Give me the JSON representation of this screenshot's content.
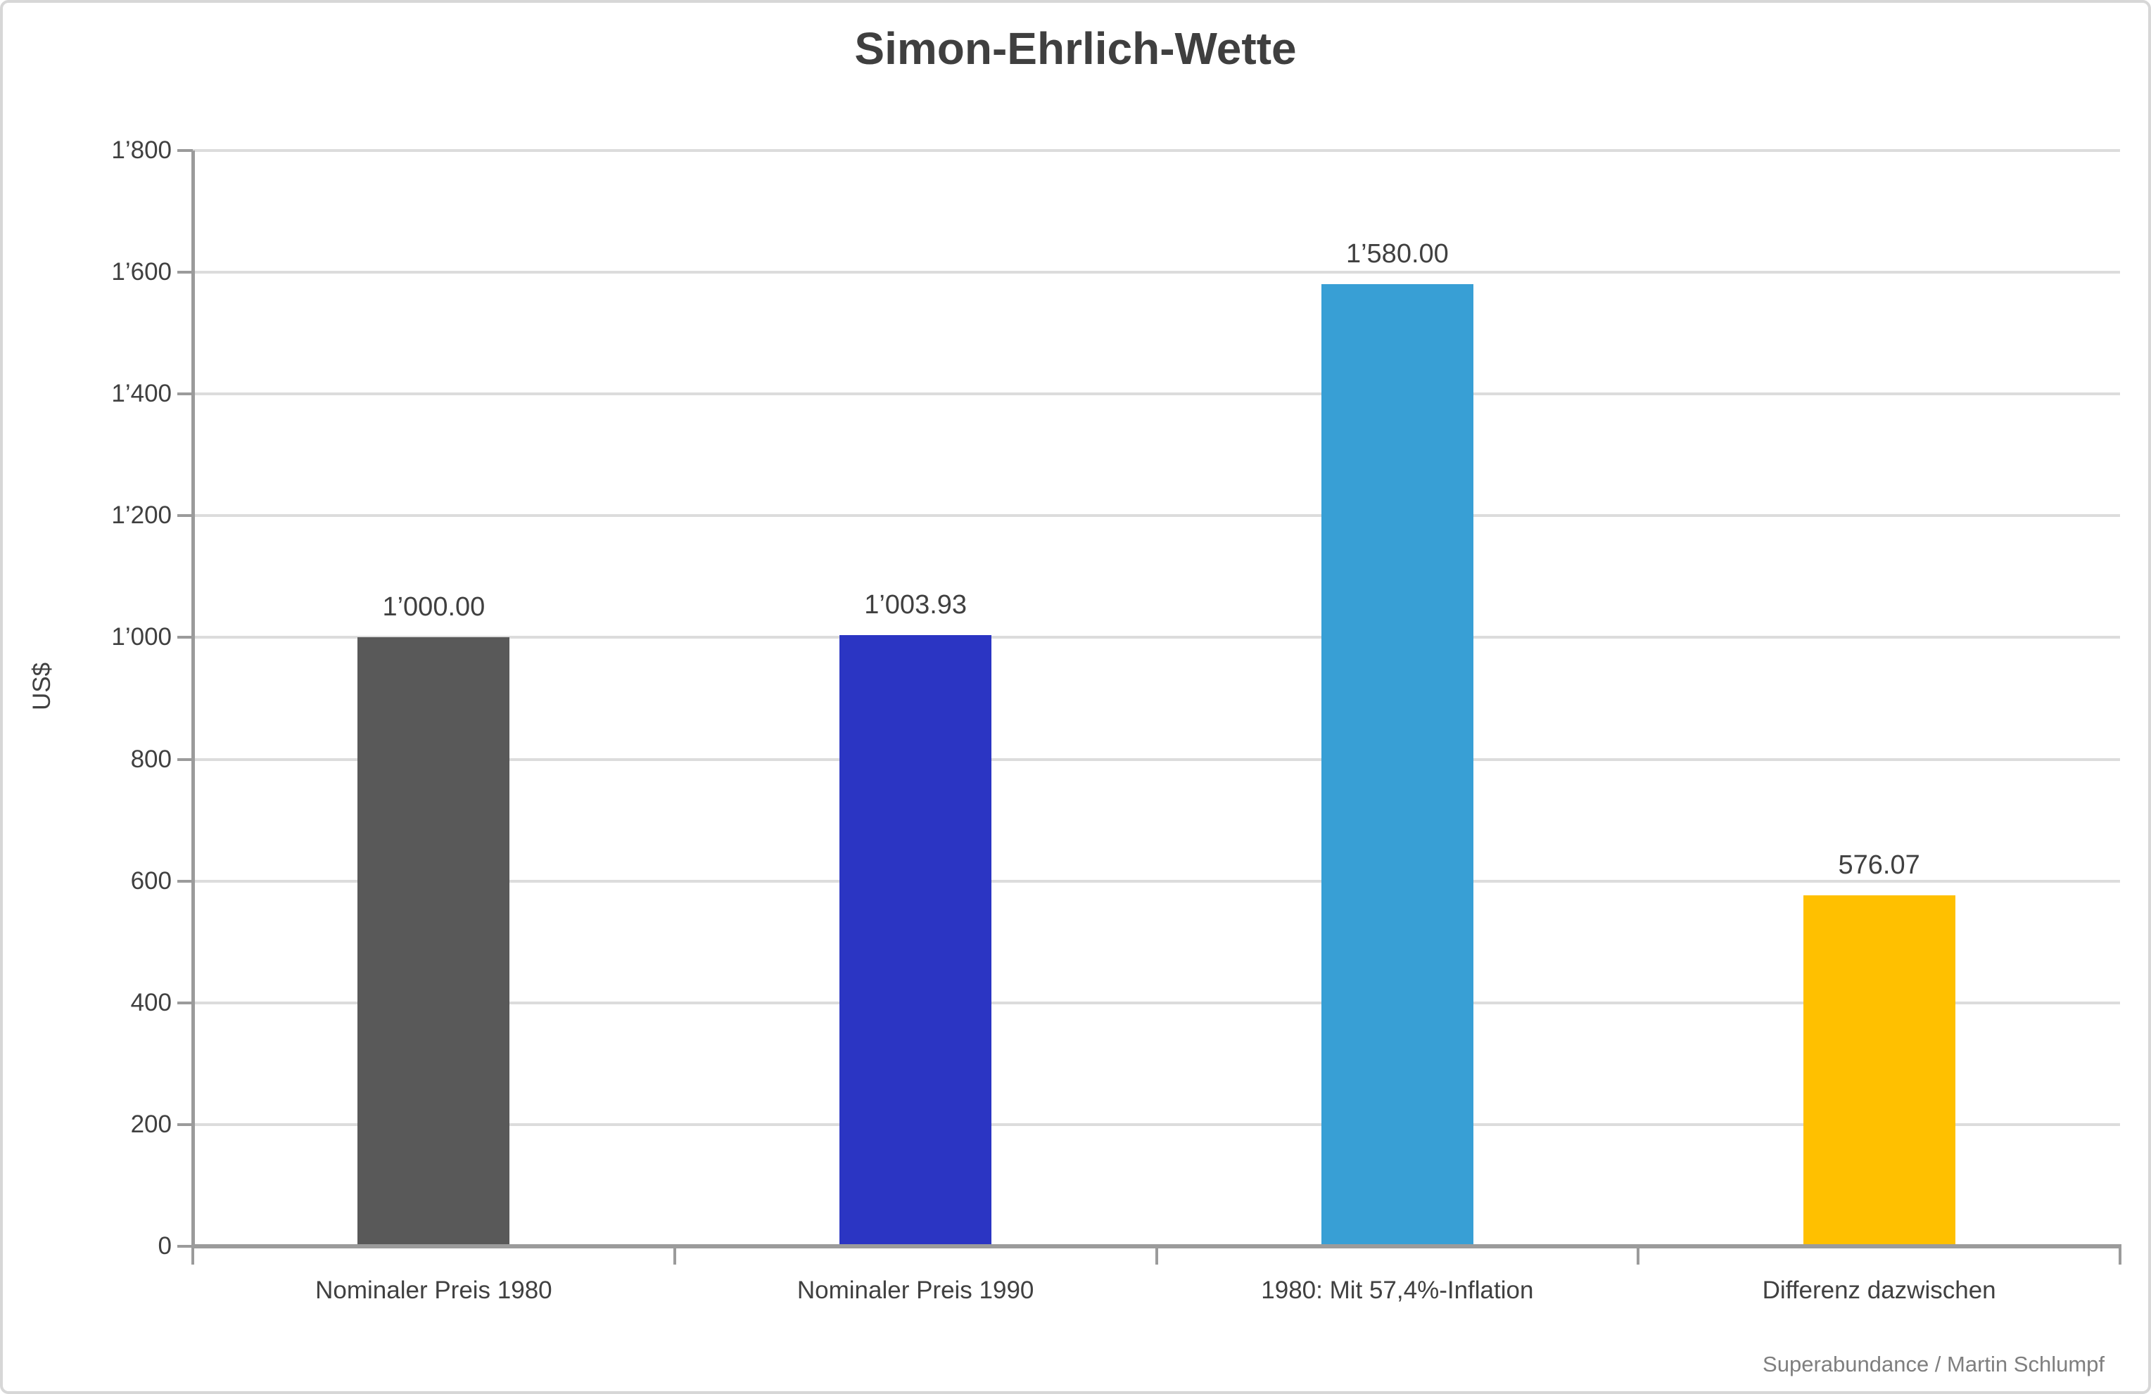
{
  "chart_data": {
    "type": "bar",
    "title": "Simon-Ehrlich-Wette",
    "xlabel": "",
    "ylabel": "US$",
    "ylim": [
      0,
      1800
    ],
    "ytick_interval": 200,
    "ytick_labels": [
      "0",
      "200",
      "400",
      "600",
      "800",
      "1’000",
      "1’200",
      "1’400",
      "1’600",
      "1’800"
    ],
    "grid": true,
    "legend": false,
    "categories": [
      "Nominaler Preis 1980",
      "Nominaler Preis 1990",
      "1980: Mit 57,4%-Inflation",
      "Differenz dazwischen"
    ],
    "values": [
      1000.0,
      1003.93,
      1580.0,
      576.07
    ],
    "value_labels": [
      "1’000.00",
      "1’003.93",
      "1’580.00",
      "576.07"
    ],
    "bar_colors": [
      "#595959",
      "#2b35c3",
      "#389fd5",
      "#ffc000"
    ]
  },
  "footer": {
    "credit": "Superabundance / Martin Schlumpf"
  },
  "colors": {
    "text": "#404040",
    "axis": "#9b9b9b",
    "grid": "#dcdcdc",
    "border": "#d7d7d7",
    "background": "#ffffff"
  }
}
